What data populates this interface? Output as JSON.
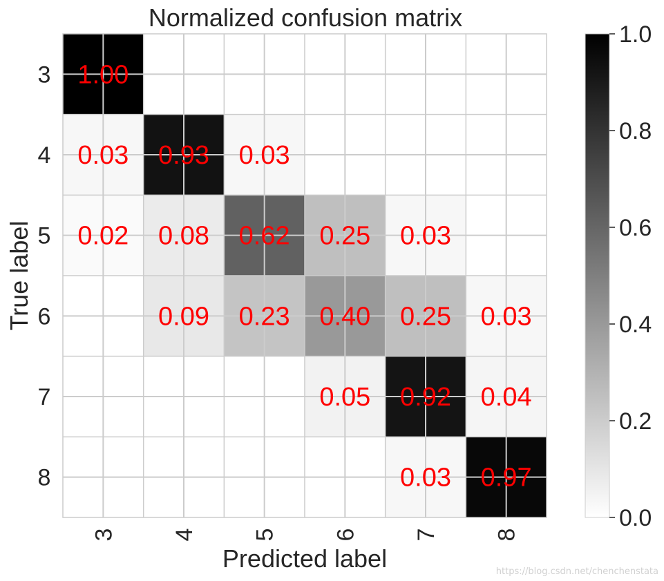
{
  "chart_data": {
    "type": "heatmap",
    "title": "Normalized confusion matrix",
    "xlabel": "Predicted label",
    "ylabel": "True label",
    "x_categories": [
      "3",
      "4",
      "5",
      "6",
      "7",
      "8"
    ],
    "y_categories": [
      "3",
      "4",
      "5",
      "6",
      "7",
      "8"
    ],
    "values": [
      [
        1.0,
        0.0,
        0.0,
        0.0,
        0.0,
        0.0
      ],
      [
        0.03,
        0.93,
        0.03,
        0.0,
        0.0,
        0.0
      ],
      [
        0.02,
        0.08,
        0.62,
        0.25,
        0.03,
        0.0
      ],
      [
        0.0,
        0.09,
        0.23,
        0.4,
        0.25,
        0.03
      ],
      [
        0.0,
        0.0,
        0.0,
        0.05,
        0.92,
        0.04
      ],
      [
        0.0,
        0.0,
        0.0,
        0.0,
        0.03,
        0.97
      ]
    ],
    "annotations": [
      [
        "1.00",
        "",
        "",
        "",
        "",
        ""
      ],
      [
        "0.03",
        "0.93",
        "0.03",
        "",
        "",
        ""
      ],
      [
        "0.02",
        "0.08",
        "0.62",
        "0.25",
        "0.03",
        ""
      ],
      [
        "",
        "0.09",
        "0.23",
        "0.40",
        "0.25",
        "0.03"
      ],
      [
        "",
        "",
        "",
        "0.05",
        "0.92",
        "0.04"
      ],
      [
        "",
        "",
        "",
        "",
        "0.03",
        "0.97"
      ]
    ],
    "colormap": "Greys",
    "vmin": 0.0,
    "vmax": 1.0,
    "annotation_color": "#ff0000",
    "grid": true,
    "colorbar": {
      "ticks": [
        0.0,
        0.2,
        0.4,
        0.6,
        0.8,
        1.0
      ],
      "tick_labels": [
        "0.0",
        "0.2",
        "0.4",
        "0.6",
        "0.8",
        "1.0"
      ]
    }
  },
  "watermark": "https://blog.csdn.net/chenchenstata"
}
